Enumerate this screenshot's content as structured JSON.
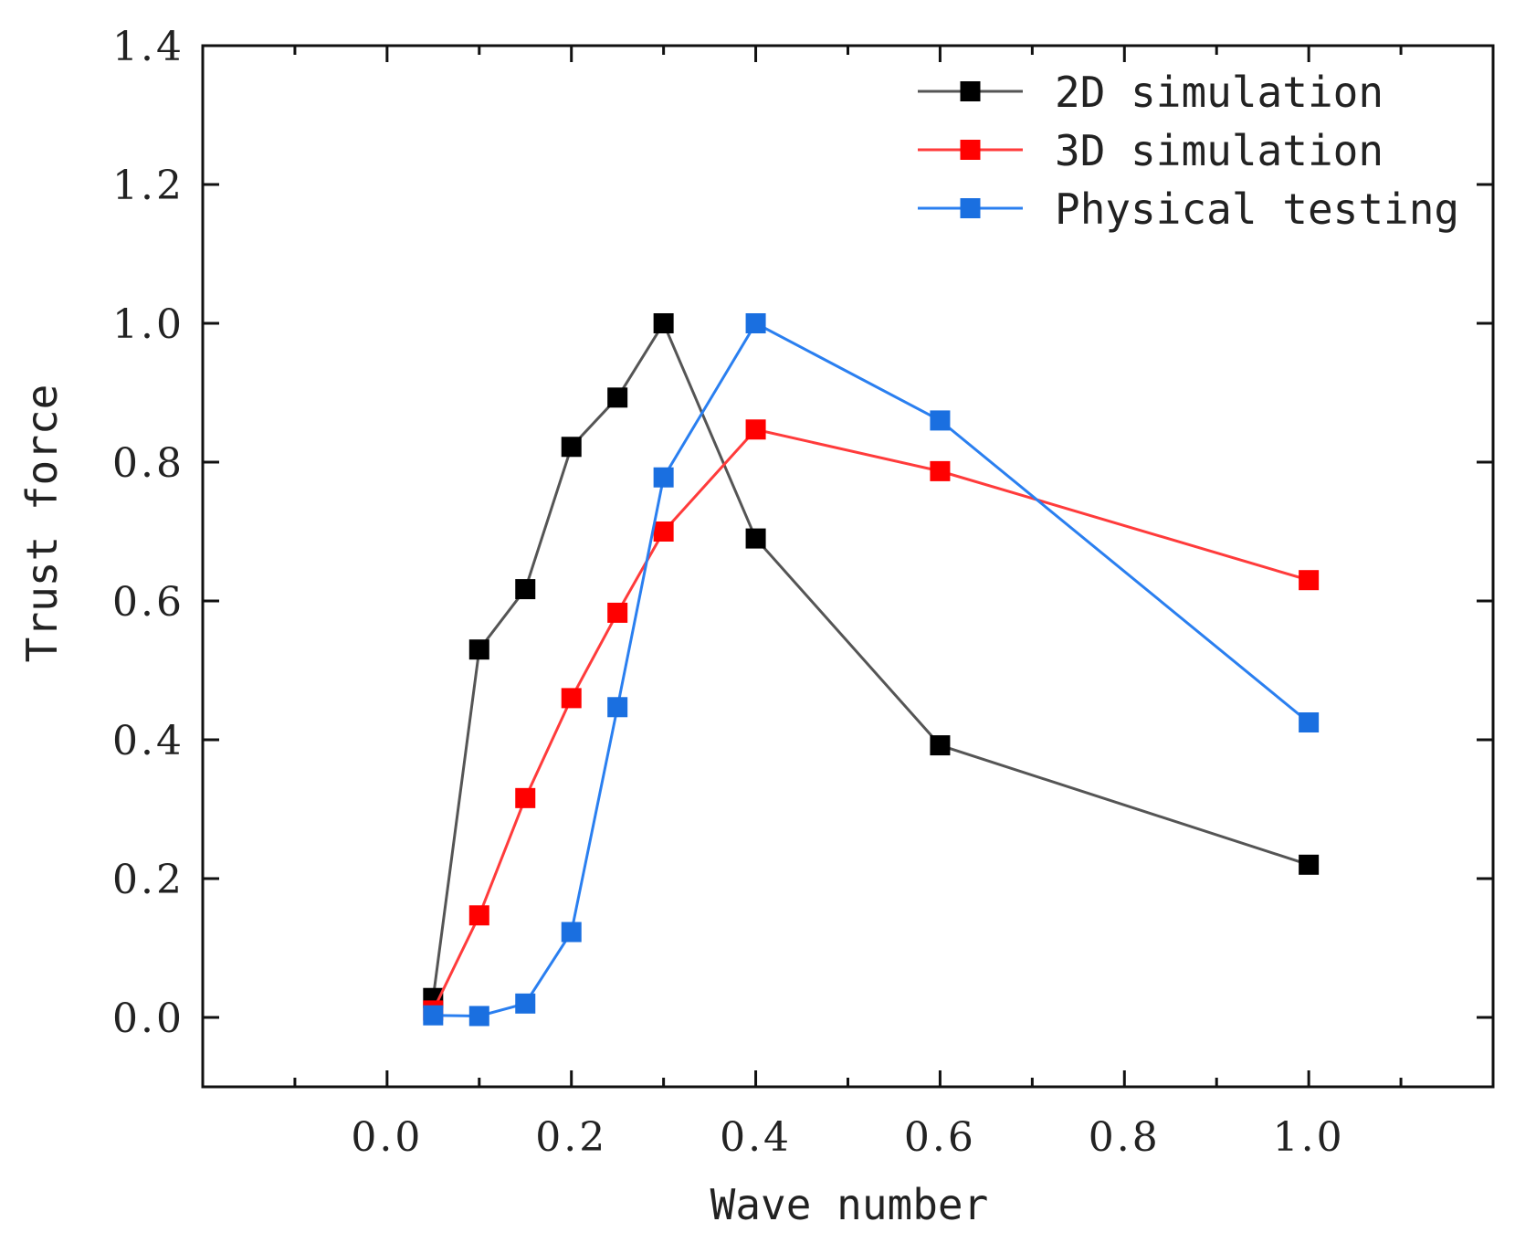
{
  "chart_data": {
    "type": "line",
    "title": "",
    "xlabel": "Wave number",
    "ylabel": "Trust force",
    "xlim": [
      -0.2,
      1.2
    ],
    "ylim": [
      -0.1,
      1.4
    ],
    "xticks": [
      0.0,
      0.2,
      0.4,
      0.6,
      0.8,
      1.0
    ],
    "xtick_labels": [
      "0.0",
      "0.2",
      "0.4",
      "0.6",
      "0.8",
      "1.0"
    ],
    "yticks": [
      0.0,
      0.2,
      0.4,
      0.6,
      0.8,
      1.0,
      1.2,
      1.4
    ],
    "ytick_labels": [
      "0.0",
      "0.2",
      "0.4",
      "0.6",
      "0.8",
      "1.0",
      "1.2",
      "1.4"
    ],
    "legend_position": "top-right",
    "series": [
      {
        "name": "2D simulation",
        "color": "#000000",
        "line_color": "#555555",
        "x": [
          0.05,
          0.1,
          0.15,
          0.2,
          0.25,
          0.3,
          0.4,
          0.6,
          1.0
        ],
        "y": [
          0.028,
          0.53,
          0.617,
          0.822,
          0.893,
          1.0,
          0.69,
          0.392,
          0.22
        ]
      },
      {
        "name": "3D simulation",
        "color": "#ff0000",
        "line_color": "#ff3b3b",
        "x": [
          0.05,
          0.1,
          0.15,
          0.2,
          0.25,
          0.3,
          0.4,
          0.6,
          1.0
        ],
        "y": [
          0.01,
          0.147,
          0.316,
          0.46,
          0.583,
          0.7,
          0.847,
          0.787,
          0.63
        ]
      },
      {
        "name": "Physical testing",
        "color": "#1a6fe0",
        "line_color": "#2a7ff0",
        "x": [
          0.05,
          0.1,
          0.15,
          0.2,
          0.25,
          0.3,
          0.4,
          0.6,
          1.0
        ],
        "y": [
          0.003,
          0.002,
          0.02,
          0.123,
          0.447,
          0.778,
          1.0,
          0.86,
          0.425
        ]
      }
    ]
  }
}
